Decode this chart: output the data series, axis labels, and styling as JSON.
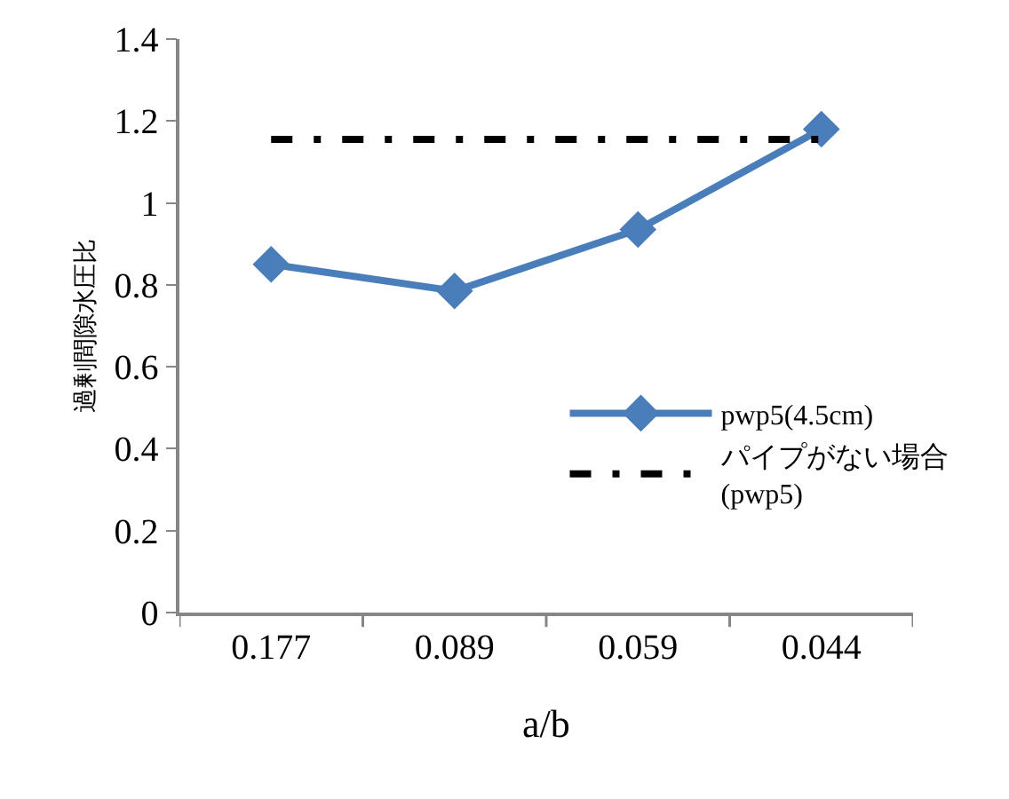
{
  "chart_data": {
    "type": "line",
    "xlabel": "a/b",
    "ylabel": "過剰間隙水圧比",
    "categories": [
      "0.177",
      "0.089",
      "0.059",
      "0.044"
    ],
    "ylim": [
      0,
      1.4
    ],
    "yticks": [
      0,
      0.2,
      0.4,
      0.6,
      0.8,
      1,
      1.2,
      1.4
    ],
    "grid": false,
    "legend": "right",
    "series": [
      {
        "name": "pwp5(4.5cm)",
        "color": "#4a7ebb",
        "values": [
          0.85,
          0.785,
          0.935,
          1.18
        ],
        "marker": "diamond",
        "line_style": "solid"
      },
      {
        "name": "パイプがない場合(pwp5)",
        "color": "#000000",
        "values": [
          1.155,
          1.155,
          1.155,
          1.155
        ],
        "marker": "none",
        "line_style": "dashed"
      }
    ]
  }
}
